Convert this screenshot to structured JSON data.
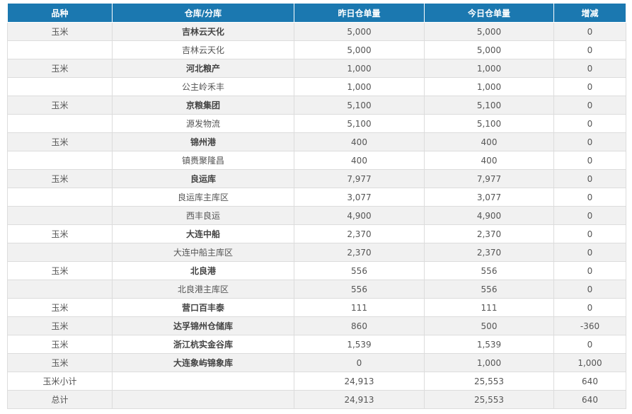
{
  "table": {
    "header": [
      "品种",
      "仓库/分库",
      "昨日仓单量",
      "今日仓单量",
      "增减"
    ],
    "rows": [
      {
        "variety": "玉米",
        "warehouse": "吉林云天化",
        "yesterday": "5,000",
        "today": "5,000",
        "change": "0",
        "main": true
      },
      {
        "warehouse": "吉林云天化",
        "yesterday": "5,000",
        "today": "5,000",
        "change": "0"
      },
      {
        "variety": "玉米",
        "warehouse": "河北粮产",
        "yesterday": "1,000",
        "today": "1,000",
        "change": "0",
        "main": true
      },
      {
        "warehouse": "公主岭禾丰",
        "yesterday": "1,000",
        "today": "1,000",
        "change": "0"
      },
      {
        "variety": "玉米",
        "warehouse": "京粮集团",
        "yesterday": "5,100",
        "today": "5,100",
        "change": "0",
        "main": true
      },
      {
        "warehouse": "源发物流",
        "yesterday": "5,100",
        "today": "5,100",
        "change": "0"
      },
      {
        "variety": "玉米",
        "warehouse": "锦州港",
        "yesterday": "400",
        "today": "400",
        "change": "0",
        "main": true
      },
      {
        "warehouse": "镇赉聚隆昌",
        "yesterday": "400",
        "today": "400",
        "change": "0"
      },
      {
        "variety": "玉米",
        "warehouse": "良运库",
        "yesterday": "7,977",
        "today": "7,977",
        "change": "0",
        "main": true
      },
      {
        "warehouse": "良运库主库区",
        "yesterday": "3,077",
        "today": "3,077",
        "change": "0"
      },
      {
        "warehouse": "西丰良运",
        "yesterday": "4,900",
        "today": "4,900",
        "change": "0"
      },
      {
        "variety": "玉米",
        "warehouse": "大连中船",
        "yesterday": "2,370",
        "today": "2,370",
        "change": "0",
        "main": true
      },
      {
        "warehouse": "大连中船主库区",
        "yesterday": "2,370",
        "today": "2,370",
        "change": "0"
      },
      {
        "variety": "玉米",
        "warehouse": "北良港",
        "yesterday": "556",
        "today": "556",
        "change": "0",
        "main": true
      },
      {
        "warehouse": "北良港主库区",
        "yesterday": "556",
        "today": "556",
        "change": "0"
      },
      {
        "variety": "玉米",
        "warehouse": "营口百丰泰",
        "yesterday": "111",
        "today": "111",
        "change": "0",
        "main": true
      },
      {
        "variety": "玉米",
        "warehouse": "达孚锦州仓储库",
        "yesterday": "860",
        "today": "500",
        "change": "-360",
        "main": true
      },
      {
        "variety": "玉米",
        "warehouse": "浙江杭实金谷库",
        "yesterday": "1,539",
        "today": "1,539",
        "change": "0",
        "main": true
      },
      {
        "variety": "玉米",
        "warehouse": "大连象屿锦象库",
        "yesterday": "0",
        "today": "1,000",
        "change": "1,000",
        "main": true
      },
      {
        "variety": "玉米小计",
        "yesterday": "24,913",
        "today": "25,553",
        "change": "640"
      },
      {
        "variety": "总计",
        "yesterday": "24,913",
        "today": "25,553",
        "change": "640"
      }
    ]
  }
}
